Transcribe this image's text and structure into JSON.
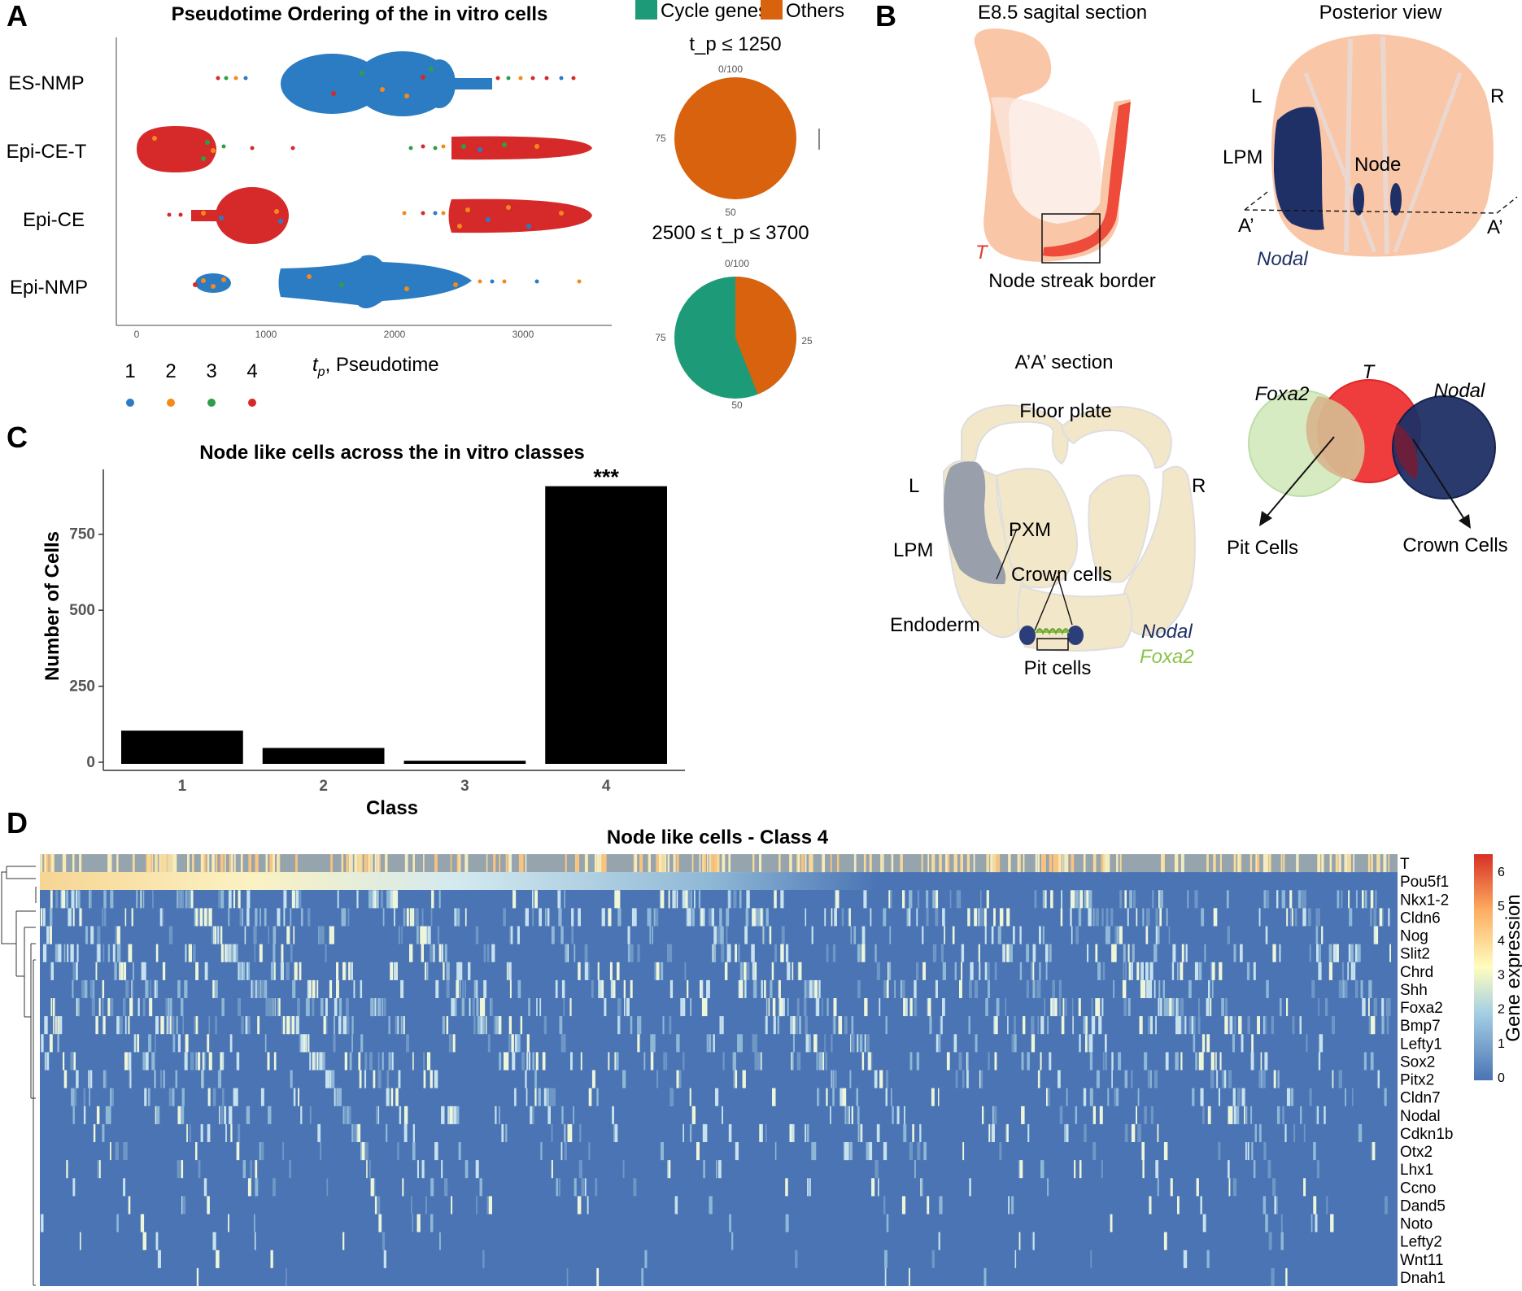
{
  "panels": {
    "a": "A",
    "b": "B",
    "c": "C",
    "d": "D"
  },
  "panel_a": {
    "title": "Pseudotime Ordering of the in vitro cells",
    "x_axis_label": "t_p, Pseudotime",
    "x_ticks": [
      "0",
      "1000",
      "2000",
      "3000"
    ],
    "rows": [
      "ES-NMP",
      "Epi-CE-T",
      "Epi-CE",
      "Epi-NMP"
    ],
    "class_legend": {
      "labels": [
        "1",
        "2",
        "3",
        "4"
      ],
      "colors": [
        "#2b7cc2",
        "#f5891b",
        "#2e9f48",
        "#d62a2a"
      ]
    },
    "pie_legend": {
      "items": [
        {
          "label": "Cycle genes",
          "color": "#1d9a78"
        },
        {
          "label": "Others",
          "color": "#d8620d"
        }
      ]
    },
    "pies": [
      {
        "condition": "t_p ≤ 1250",
        "cycle_fraction": 0.0,
        "tick_labels": {
          "top": "0/100",
          "left": "75",
          "bottom": "50",
          "right": ""
        }
      },
      {
        "condition": "2500 ≤ t_p ≤ 3700",
        "cycle_fraction": 0.56,
        "tick_labels": {
          "top": "0/100",
          "left": "75",
          "bottom": "50",
          "right": "25"
        }
      }
    ]
  },
  "panel_b": {
    "sagittal_title": "E8.5 sagital section",
    "sagittal_T": "T",
    "sagittal_caption": "Node streak border",
    "posterior_title": "Posterior view",
    "posterior_labels": {
      "L": "L",
      "R": "R",
      "LPM": "LPM",
      "Node": "Node",
      "A1": "A’",
      "A2": "A’",
      "Nodal": "Nodal"
    },
    "section_title": "A’A’ section",
    "section_labels": {
      "floor_plate": "Floor plate",
      "L": "L",
      "R": "R",
      "PXM": "PXM",
      "LPM": "LPM",
      "crown": "Crown cells",
      "endoderm": "Endoderm",
      "pit": "Pit cells",
      "Nodal": "Nodal",
      "Foxa2": "Foxa2"
    },
    "venn": {
      "foxa2": "Foxa2",
      "t": "T",
      "nodal": "Nodal",
      "pit": "Pit Cells",
      "crown": "Crown Cells"
    }
  },
  "panel_c": {
    "chart_data": {
      "type": "bar",
      "title": "Node like cells across the in vitro classes",
      "xlabel": "Class",
      "ylabel": "Number of Cells",
      "categories": [
        "1",
        "2",
        "3",
        "4"
      ],
      "values": [
        104,
        47,
        5,
        908
      ],
      "ylim": [
        0,
        950
      ],
      "yticks": [
        0,
        250,
        500,
        750
      ],
      "annotation": "***",
      "bar_color": "#000000",
      "grid": false
    }
  },
  "panel_d": {
    "title": "Node like cells - Class 4",
    "genes": [
      "T",
      "Pou5f1",
      "Nkx1-2",
      "Cldn6",
      "Nog",
      "Slit2",
      "Chrd",
      "Shh",
      "Foxa2",
      "Bmp7",
      "Lefty1",
      "Sox2",
      "Pitx2",
      "Cldn7",
      "Nodal",
      "Cdkn1b",
      "Otx2",
      "Lhx1",
      "Ccno",
      "Dand5",
      "Noto",
      "Lefty2",
      "Wnt11",
      "Dnah1"
    ],
    "colorbar_label": "Gene expression",
    "colorbar_ticks": [
      "0",
      "1",
      "2",
      "3",
      "4",
      "5",
      "6"
    ]
  }
}
